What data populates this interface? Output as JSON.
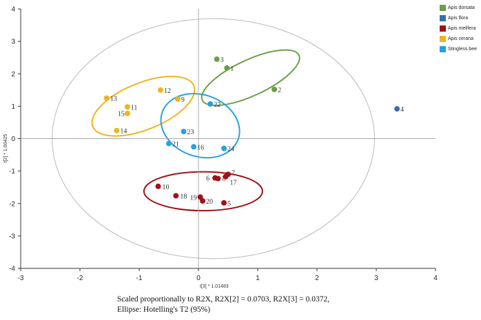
{
  "chart_data": {
    "type": "scatter",
    "xlabel": "t[3] * 1.01483",
    "ylabel": "t[2] * 1.00425",
    "xlim": [
      -3,
      4
    ],
    "ylim": [
      -4,
      4
    ],
    "xticks": [
      "-3",
      "-2",
      "-1",
      "0",
      "1",
      "2",
      "3",
      "4"
    ],
    "yticks": [
      "4",
      "3",
      "2",
      "1",
      "0",
      "-1",
      "-2",
      "-3",
      "-4"
    ],
    "series": [
      {
        "name": "Apis dorsata",
        "color": "#6a9e47",
        "points": [
          {
            "label": "1",
            "x": 0.48,
            "y": 2.18
          },
          {
            "label": "2",
            "x": 1.28,
            "y": 1.52
          },
          {
            "label": "3",
            "x": 0.31,
            "y": 2.45
          }
        ]
      },
      {
        "name": "Apis flora",
        "color": "#3d6db0",
        "points": [
          {
            "label": "4",
            "x": 3.35,
            "y": 0.92
          }
        ]
      },
      {
        "name": "Apis melifera",
        "color": "#a11218",
        "points": [
          {
            "label": "5",
            "x": 0.43,
            "y": -1.98
          },
          {
            "label": "6",
            "x": 0.28,
            "y": -1.21
          },
          {
            "label": "7",
            "x": 0.5,
            "y": -1.1
          },
          {
            "label": "8",
            "x": 0.33,
            "y": -1.23
          },
          {
            "label": "10",
            "x": -0.68,
            "y": -1.47
          },
          {
            "label": "17",
            "x": 0.46,
            "y": -1.17
          },
          {
            "label": "18",
            "x": -0.38,
            "y": -1.76
          },
          {
            "label": "19",
            "x": 0.03,
            "y": -1.8
          },
          {
            "label": "20",
            "x": 0.07,
            "y": -1.92
          }
        ]
      },
      {
        "name": "Apis cerana",
        "color": "#f0b41e",
        "points": [
          {
            "label": "9",
            "x": -0.35,
            "y": 1.22
          },
          {
            "label": "11",
            "x": -1.2,
            "y": 0.98
          },
          {
            "label": "12",
            "x": -0.64,
            "y": 1.5
          },
          {
            "label": "13",
            "x": -1.55,
            "y": 1.25
          },
          {
            "label": "14",
            "x": -1.38,
            "y": 0.25
          },
          {
            "label": "15",
            "x": -1.2,
            "y": 0.78
          }
        ]
      },
      {
        "name": "Stingless bee",
        "color": "#22a3e0",
        "points": [
          {
            "label": "16",
            "x": -0.08,
            "y": -0.25
          },
          {
            "label": "21",
            "x": -0.5,
            "y": -0.15
          },
          {
            "label": "22",
            "x": 0.2,
            "y": 1.07
          },
          {
            "label": "23",
            "x": -0.25,
            "y": 0.22
          },
          {
            "label": "24",
            "x": 0.43,
            "y": -0.3
          }
        ]
      }
    ],
    "ellipses": [
      {
        "name": "Apis dorsata",
        "color": "#6a9e47",
        "cx": 0.88,
        "cy": 1.88,
        "rx": 0.9,
        "ry": 0.55,
        "angle": -25
      },
      {
        "name": "Apis cerana",
        "color": "#f0b41e",
        "cx": -0.93,
        "cy": 1.0,
        "rx": 0.92,
        "ry": 0.72,
        "angle": -22
      },
      {
        "name": "Stingless bee",
        "color": "#22a3e0",
        "cx": 0.03,
        "cy": 0.4,
        "rx": 0.68,
        "ry": 0.95,
        "angle": 20
      },
      {
        "name": "Apis melifera",
        "color": "#a11218",
        "cx": 0.08,
        "cy": -1.62,
        "rx": 1.0,
        "ry": 0.6,
        "angle": 0
      },
      {
        "name": "Hotelling's T2 (95%)",
        "color": "#b8b8b8",
        "cx": 0.25,
        "cy": 0.0,
        "rx": 2.72,
        "ry": 3.7,
        "angle": 0
      }
    ]
  },
  "caption": {
    "line1": "Scaled proportionally to R2X, R2X[2] = 0.0703, R2X[3] = 0.0372,",
    "line2": "Ellipse: Hotelling's T2 (95%)"
  }
}
